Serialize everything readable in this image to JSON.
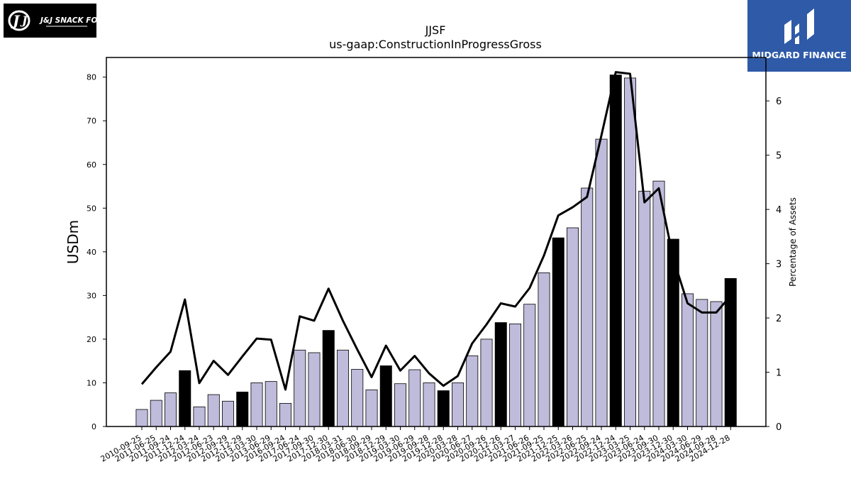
{
  "logos": {
    "left_text": "J&J SNACK FOODS",
    "right_text": "MIDGARD FINANCE"
  },
  "chart_data": {
    "type": "bar+line",
    "title": "JJSF",
    "subtitle": "us-gaap:ConstructionInProgressGross",
    "ylabel_left": "USDm",
    "ylabel_right": "Percentage of Assets",
    "ylim_left": [
      0,
      84.5
    ],
    "ylim_right": [
      0,
      6.8
    ],
    "yticks_left": [
      "0",
      "10",
      "20",
      "30",
      "40",
      "50",
      "60",
      "70",
      "80"
    ],
    "yticks_right": [
      "0",
      "1",
      "2",
      "3",
      "4",
      "5",
      "6"
    ],
    "bar_color": "#bfbbdb",
    "highlight_color": "#000000",
    "line_color": "#000000",
    "categories": [
      "2010-09-25",
      "2011-06-25",
      "2011-09-24",
      "2011-12-24",
      "2012-03-24",
      "2012-06-23",
      "2012-09-29",
      "2012-12-29",
      "2013-03-30",
      "2013-06-29",
      "2016-09-24",
      "2017-06-24",
      "2017-09-30",
      "2017-12-30",
      "2018-03-31",
      "2018-06-30",
      "2018-09-29",
      "2018-12-29",
      "2019-03-30",
      "2019-06-29",
      "2019-09-28",
      "2019-12-28",
      "2020-03-28",
      "2020-06-27",
      "2020-09-26",
      "2020-12-26",
      "2021-03-27",
      "2021-06-26",
      "2021-09-25",
      "2021-12-25",
      "2022-03-26",
      "2022-06-25",
      "2022-09-24",
      "2022-12-24",
      "2023-03-25",
      "2023-06-24",
      "2023-09-30",
      "2023-12-30",
      "2024-03-30",
      "2024-06-29",
      "2024-09-28",
      "2024-12-28"
    ],
    "values": [
      3.9,
      6.0,
      7.7,
      12.8,
      4.5,
      7.3,
      5.8,
      7.9,
      10.0,
      10.3,
      5.3,
      17.5,
      16.9,
      22.0,
      17.5,
      13.1,
      8.4,
      13.9,
      9.8,
      13.0,
      10.0,
      8.2,
      10.0,
      16.2,
      20.0,
      23.8,
      23.5,
      28.0,
      35.2,
      43.2,
      45.5,
      54.6,
      65.8,
      80.5,
      79.8,
      53.9,
      56.2,
      42.9,
      30.4,
      29.1,
      28.6,
      33.9
    ],
    "highlighted": [
      false,
      false,
      false,
      true,
      false,
      false,
      false,
      true,
      false,
      false,
      false,
      false,
      false,
      true,
      false,
      false,
      false,
      true,
      false,
      false,
      false,
      true,
      false,
      false,
      false,
      true,
      false,
      false,
      false,
      true,
      false,
      false,
      false,
      true,
      false,
      false,
      false,
      true,
      false,
      false,
      false,
      true
    ],
    "percent_of_assets": [
      0.78,
      1.09,
      1.38,
      2.34,
      0.8,
      1.21,
      0.95,
      1.29,
      1.62,
      1.6,
      0.68,
      2.03,
      1.95,
      2.54,
      1.95,
      1.42,
      0.91,
      1.49,
      1.03,
      1.3,
      0.98,
      0.75,
      0.93,
      1.53,
      1.88,
      2.27,
      2.21,
      2.55,
      3.15,
      3.89,
      4.04,
      4.23,
      5.36,
      6.53,
      6.5,
      4.13,
      4.39,
      3.1,
      2.27,
      2.1,
      2.1,
      2.41
    ],
    "grid": false
  }
}
